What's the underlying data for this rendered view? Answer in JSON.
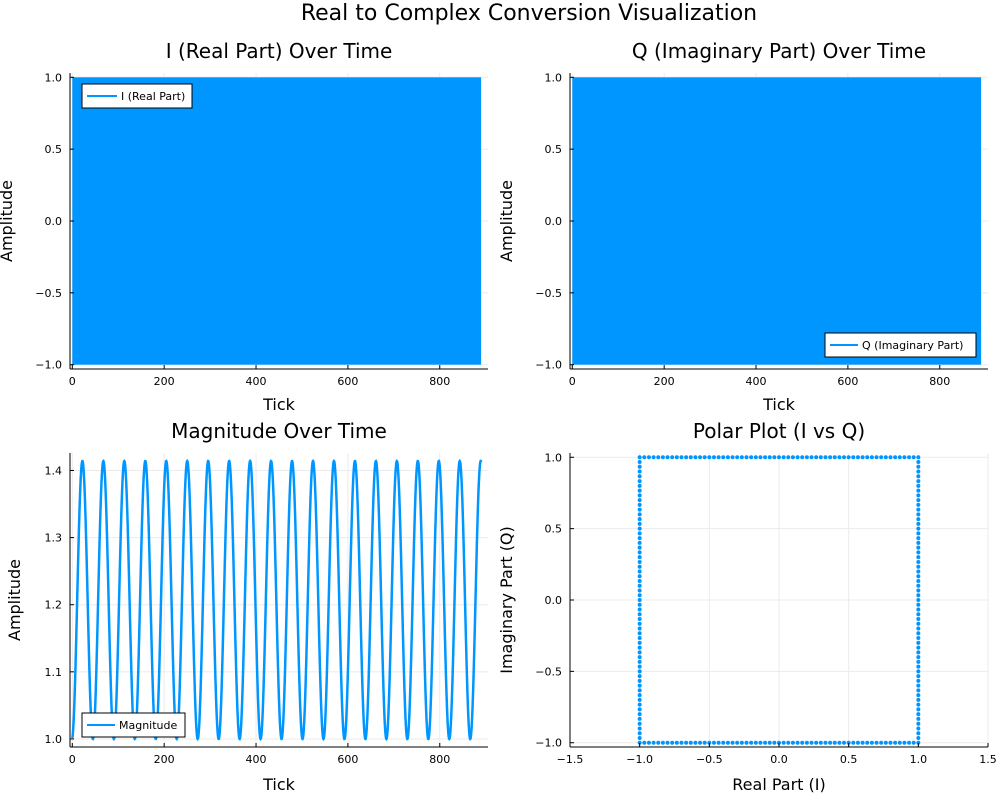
{
  "figure": {
    "suptitle": "Real to Complex Conversion Visualization"
  },
  "colors": {
    "series": "#0096ff",
    "grid": "#ebebeb",
    "axis": "#000000",
    "background": "#ffffff"
  },
  "chart_data": [
    {
      "type": "line",
      "title": "I (Real Part) Over Time",
      "xlabel": "Tick",
      "ylabel": "Amplitude",
      "xlim": [
        -5,
        905
      ],
      "ylim": [
        -1.03,
        1.03
      ],
      "xticks": [
        0,
        200,
        400,
        600,
        800
      ],
      "xtick_labels": [
        "0",
        "200",
        "400",
        "600",
        "800"
      ],
      "yticks": [
        -1.0,
        -0.5,
        0.0,
        0.5,
        1.0
      ],
      "ytick_labels": [
        "−1.0",
        "−0.5",
        "0.0",
        "0.5",
        "1.0"
      ],
      "grid": true,
      "legend_position": "top-left",
      "series": [
        {
          "name": "I (Real Part)",
          "function": "cos",
          "x_range": [
            0,
            890
          ],
          "period_ticks": 2,
          "amplitude": 1.0,
          "render": "dense-band"
        }
      ]
    },
    {
      "type": "line",
      "title": "Q (Imaginary Part) Over Time",
      "xlabel": "Tick",
      "ylabel": "Amplitude",
      "xlim": [
        -5,
        905
      ],
      "ylim": [
        -1.03,
        1.03
      ],
      "xticks": [
        0,
        200,
        400,
        600,
        800
      ],
      "xtick_labels": [
        "0",
        "200",
        "400",
        "600",
        "800"
      ],
      "yticks": [
        -1.0,
        -0.5,
        0.0,
        0.5,
        1.0
      ],
      "ytick_labels": [
        "−1.0",
        "−0.5",
        "0.0",
        "0.5",
        "1.0"
      ],
      "grid": true,
      "legend_position": "bottom-right",
      "series": [
        {
          "name": "Q (Imaginary Part)",
          "function": "sin",
          "x_range": [
            0,
            890
          ],
          "period_ticks": 2,
          "amplitude": 1.0,
          "render": "dense-band"
        }
      ]
    },
    {
      "type": "line",
      "title": "Magnitude Over Time",
      "xlabel": "Tick",
      "ylabel": "Amplitude",
      "xlim": [
        -5,
        905
      ],
      "ylim": [
        0.988,
        1.426
      ],
      "xticks": [
        0,
        200,
        400,
        600,
        800
      ],
      "xtick_labels": [
        "0",
        "200",
        "400",
        "600",
        "800"
      ],
      "yticks": [
        1.0,
        1.1,
        1.2,
        1.3,
        1.4
      ],
      "ytick_labels": [
        "1.0",
        "1.1",
        "1.2",
        "1.3",
        "1.4"
      ],
      "grid": true,
      "legend_position": "bottom-left",
      "series": [
        {
          "name": "Magnitude",
          "function": "magnitude",
          "x_range": [
            0,
            890
          ],
          "min": 1.0,
          "max": 1.414,
          "cycles": 19.5,
          "first_peak_x": 22
        }
      ]
    },
    {
      "type": "scatter",
      "title": "Polar Plot (I vs Q)",
      "xlabel": "Real Part (I)",
      "ylabel": "Imaginary Part (Q)",
      "xlim": [
        -1.5,
        1.5
      ],
      "ylim": [
        -1.03,
        1.03
      ],
      "xticks": [
        -1.5,
        -1.0,
        -0.5,
        0.0,
        0.5,
        1.0,
        1.5
      ],
      "xtick_labels": [
        "−1.5",
        "−1.0",
        "−0.5",
        "0.0",
        "0.5",
        "1.0",
        "1.5"
      ],
      "yticks": [
        -1.0,
        -0.5,
        0.0,
        0.5,
        1.0
      ],
      "ytick_labels": [
        "−1.0",
        "−0.5",
        "0.0",
        "0.5",
        "1.0"
      ],
      "grid": true,
      "legend_position": "none",
      "series": [
        {
          "shape": "square",
          "corners": [
            [
              -1,
              -1
            ],
            [
              1,
              -1
            ],
            [
              1,
              1
            ],
            [
              -1,
              1
            ]
          ],
          "points_per_side": 60
        }
      ]
    }
  ]
}
